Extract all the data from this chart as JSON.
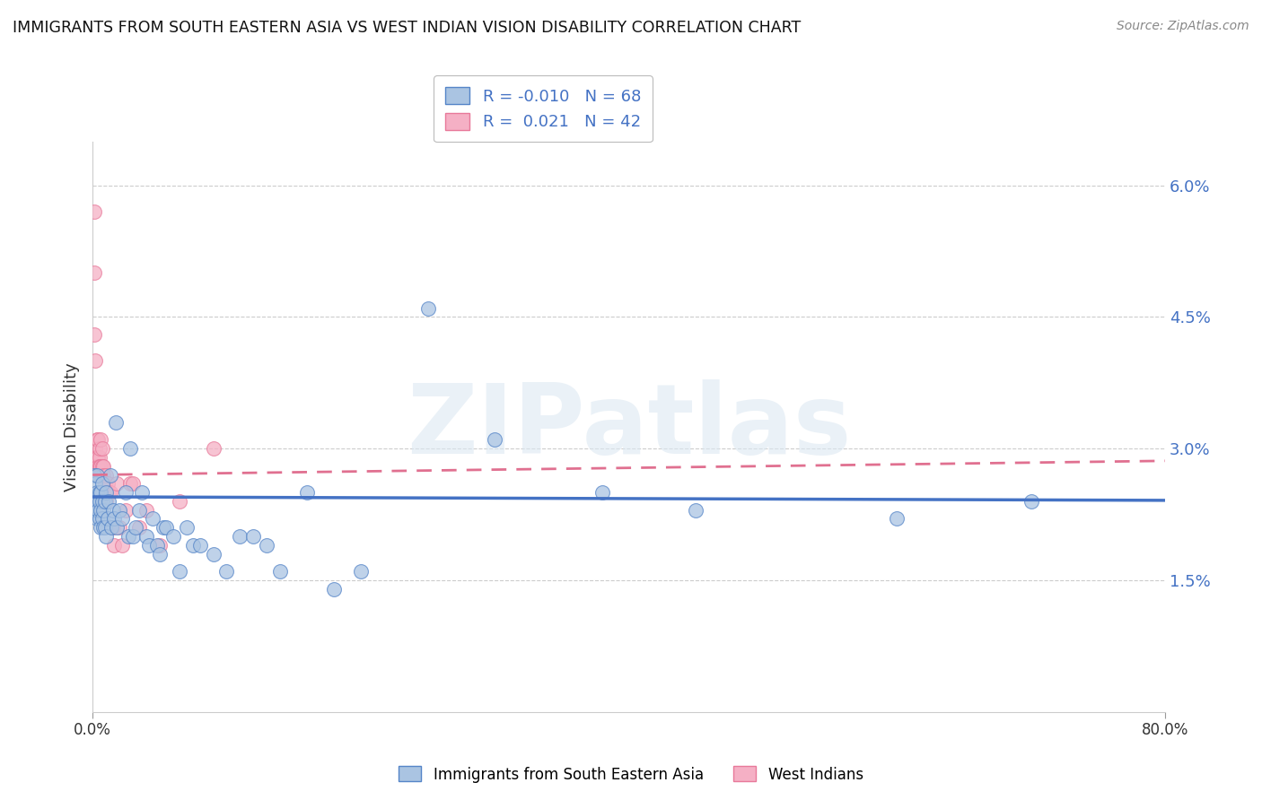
{
  "title": "IMMIGRANTS FROM SOUTH EASTERN ASIA VS WEST INDIAN VISION DISABILITY CORRELATION CHART",
  "source": "Source: ZipAtlas.com",
  "xlabel_blue": "Immigrants from South Eastern Asia",
  "xlabel_pink": "West Indians",
  "ylabel": "Vision Disability",
  "watermark": "ZIPatlas",
  "xlim": [
    0.0,
    0.8
  ],
  "ylim": [
    0.0,
    0.065
  ],
  "yticks": [
    0.015,
    0.03,
    0.045,
    0.06
  ],
  "ytick_labels": [
    "1.5%",
    "3.0%",
    "4.5%",
    "6.0%"
  ],
  "blue_R": -0.01,
  "blue_N": 68,
  "pink_R": 0.021,
  "pink_N": 42,
  "blue_color": "#aac4e2",
  "pink_color": "#f5b0c5",
  "blue_edge_color": "#5585c8",
  "pink_edge_color": "#e8799a",
  "blue_line_color": "#4472c4",
  "pink_line_color": "#e07090",
  "title_fontsize": 12.5,
  "source_fontsize": 10,
  "legend_fontsize": 13,
  "blue_line_intercept": 0.0245,
  "blue_line_slope": -0.0005,
  "pink_line_intercept": 0.027,
  "pink_line_slope": 0.002,
  "blue_scatter_x": [
    0.001,
    0.001,
    0.002,
    0.002,
    0.003,
    0.003,
    0.003,
    0.004,
    0.004,
    0.005,
    0.005,
    0.005,
    0.006,
    0.006,
    0.006,
    0.007,
    0.007,
    0.007,
    0.008,
    0.008,
    0.009,
    0.009,
    0.01,
    0.01,
    0.011,
    0.012,
    0.013,
    0.014,
    0.015,
    0.016,
    0.017,
    0.018,
    0.02,
    0.022,
    0.025,
    0.027,
    0.028,
    0.03,
    0.032,
    0.035,
    0.037,
    0.04,
    0.042,
    0.045,
    0.048,
    0.05,
    0.053,
    0.055,
    0.06,
    0.065,
    0.07,
    0.075,
    0.08,
    0.09,
    0.1,
    0.11,
    0.12,
    0.13,
    0.14,
    0.16,
    0.18,
    0.2,
    0.25,
    0.3,
    0.38,
    0.45,
    0.6,
    0.7
  ],
  "blue_scatter_y": [
    0.027,
    0.024,
    0.026,
    0.023,
    0.025,
    0.022,
    0.027,
    0.024,
    0.023,
    0.022,
    0.025,
    0.024,
    0.023,
    0.021,
    0.025,
    0.022,
    0.024,
    0.026,
    0.021,
    0.023,
    0.021,
    0.024,
    0.02,
    0.025,
    0.022,
    0.024,
    0.027,
    0.021,
    0.023,
    0.022,
    0.033,
    0.021,
    0.023,
    0.022,
    0.025,
    0.02,
    0.03,
    0.02,
    0.021,
    0.023,
    0.025,
    0.02,
    0.019,
    0.022,
    0.019,
    0.018,
    0.021,
    0.021,
    0.02,
    0.016,
    0.021,
    0.019,
    0.019,
    0.018,
    0.016,
    0.02,
    0.02,
    0.019,
    0.016,
    0.025,
    0.014,
    0.016,
    0.046,
    0.031,
    0.025,
    0.023,
    0.022,
    0.024
  ],
  "pink_scatter_x": [
    0.001,
    0.001,
    0.001,
    0.002,
    0.002,
    0.002,
    0.003,
    0.003,
    0.003,
    0.004,
    0.004,
    0.004,
    0.005,
    0.005,
    0.005,
    0.005,
    0.006,
    0.006,
    0.006,
    0.007,
    0.007,
    0.008,
    0.008,
    0.009,
    0.01,
    0.01,
    0.011,
    0.012,
    0.013,
    0.015,
    0.016,
    0.018,
    0.02,
    0.022,
    0.025,
    0.028,
    0.03,
    0.035,
    0.04,
    0.05,
    0.065,
    0.09
  ],
  "pink_scatter_y": [
    0.057,
    0.05,
    0.043,
    0.04,
    0.03,
    0.029,
    0.031,
    0.029,
    0.028,
    0.029,
    0.031,
    0.028,
    0.029,
    0.028,
    0.03,
    0.028,
    0.028,
    0.031,
    0.027,
    0.028,
    0.03,
    0.028,
    0.027,
    0.026,
    0.027,
    0.024,
    0.026,
    0.025,
    0.025,
    0.021,
    0.019,
    0.026,
    0.021,
    0.019,
    0.023,
    0.026,
    0.026,
    0.021,
    0.023,
    0.019,
    0.024,
    0.03
  ]
}
